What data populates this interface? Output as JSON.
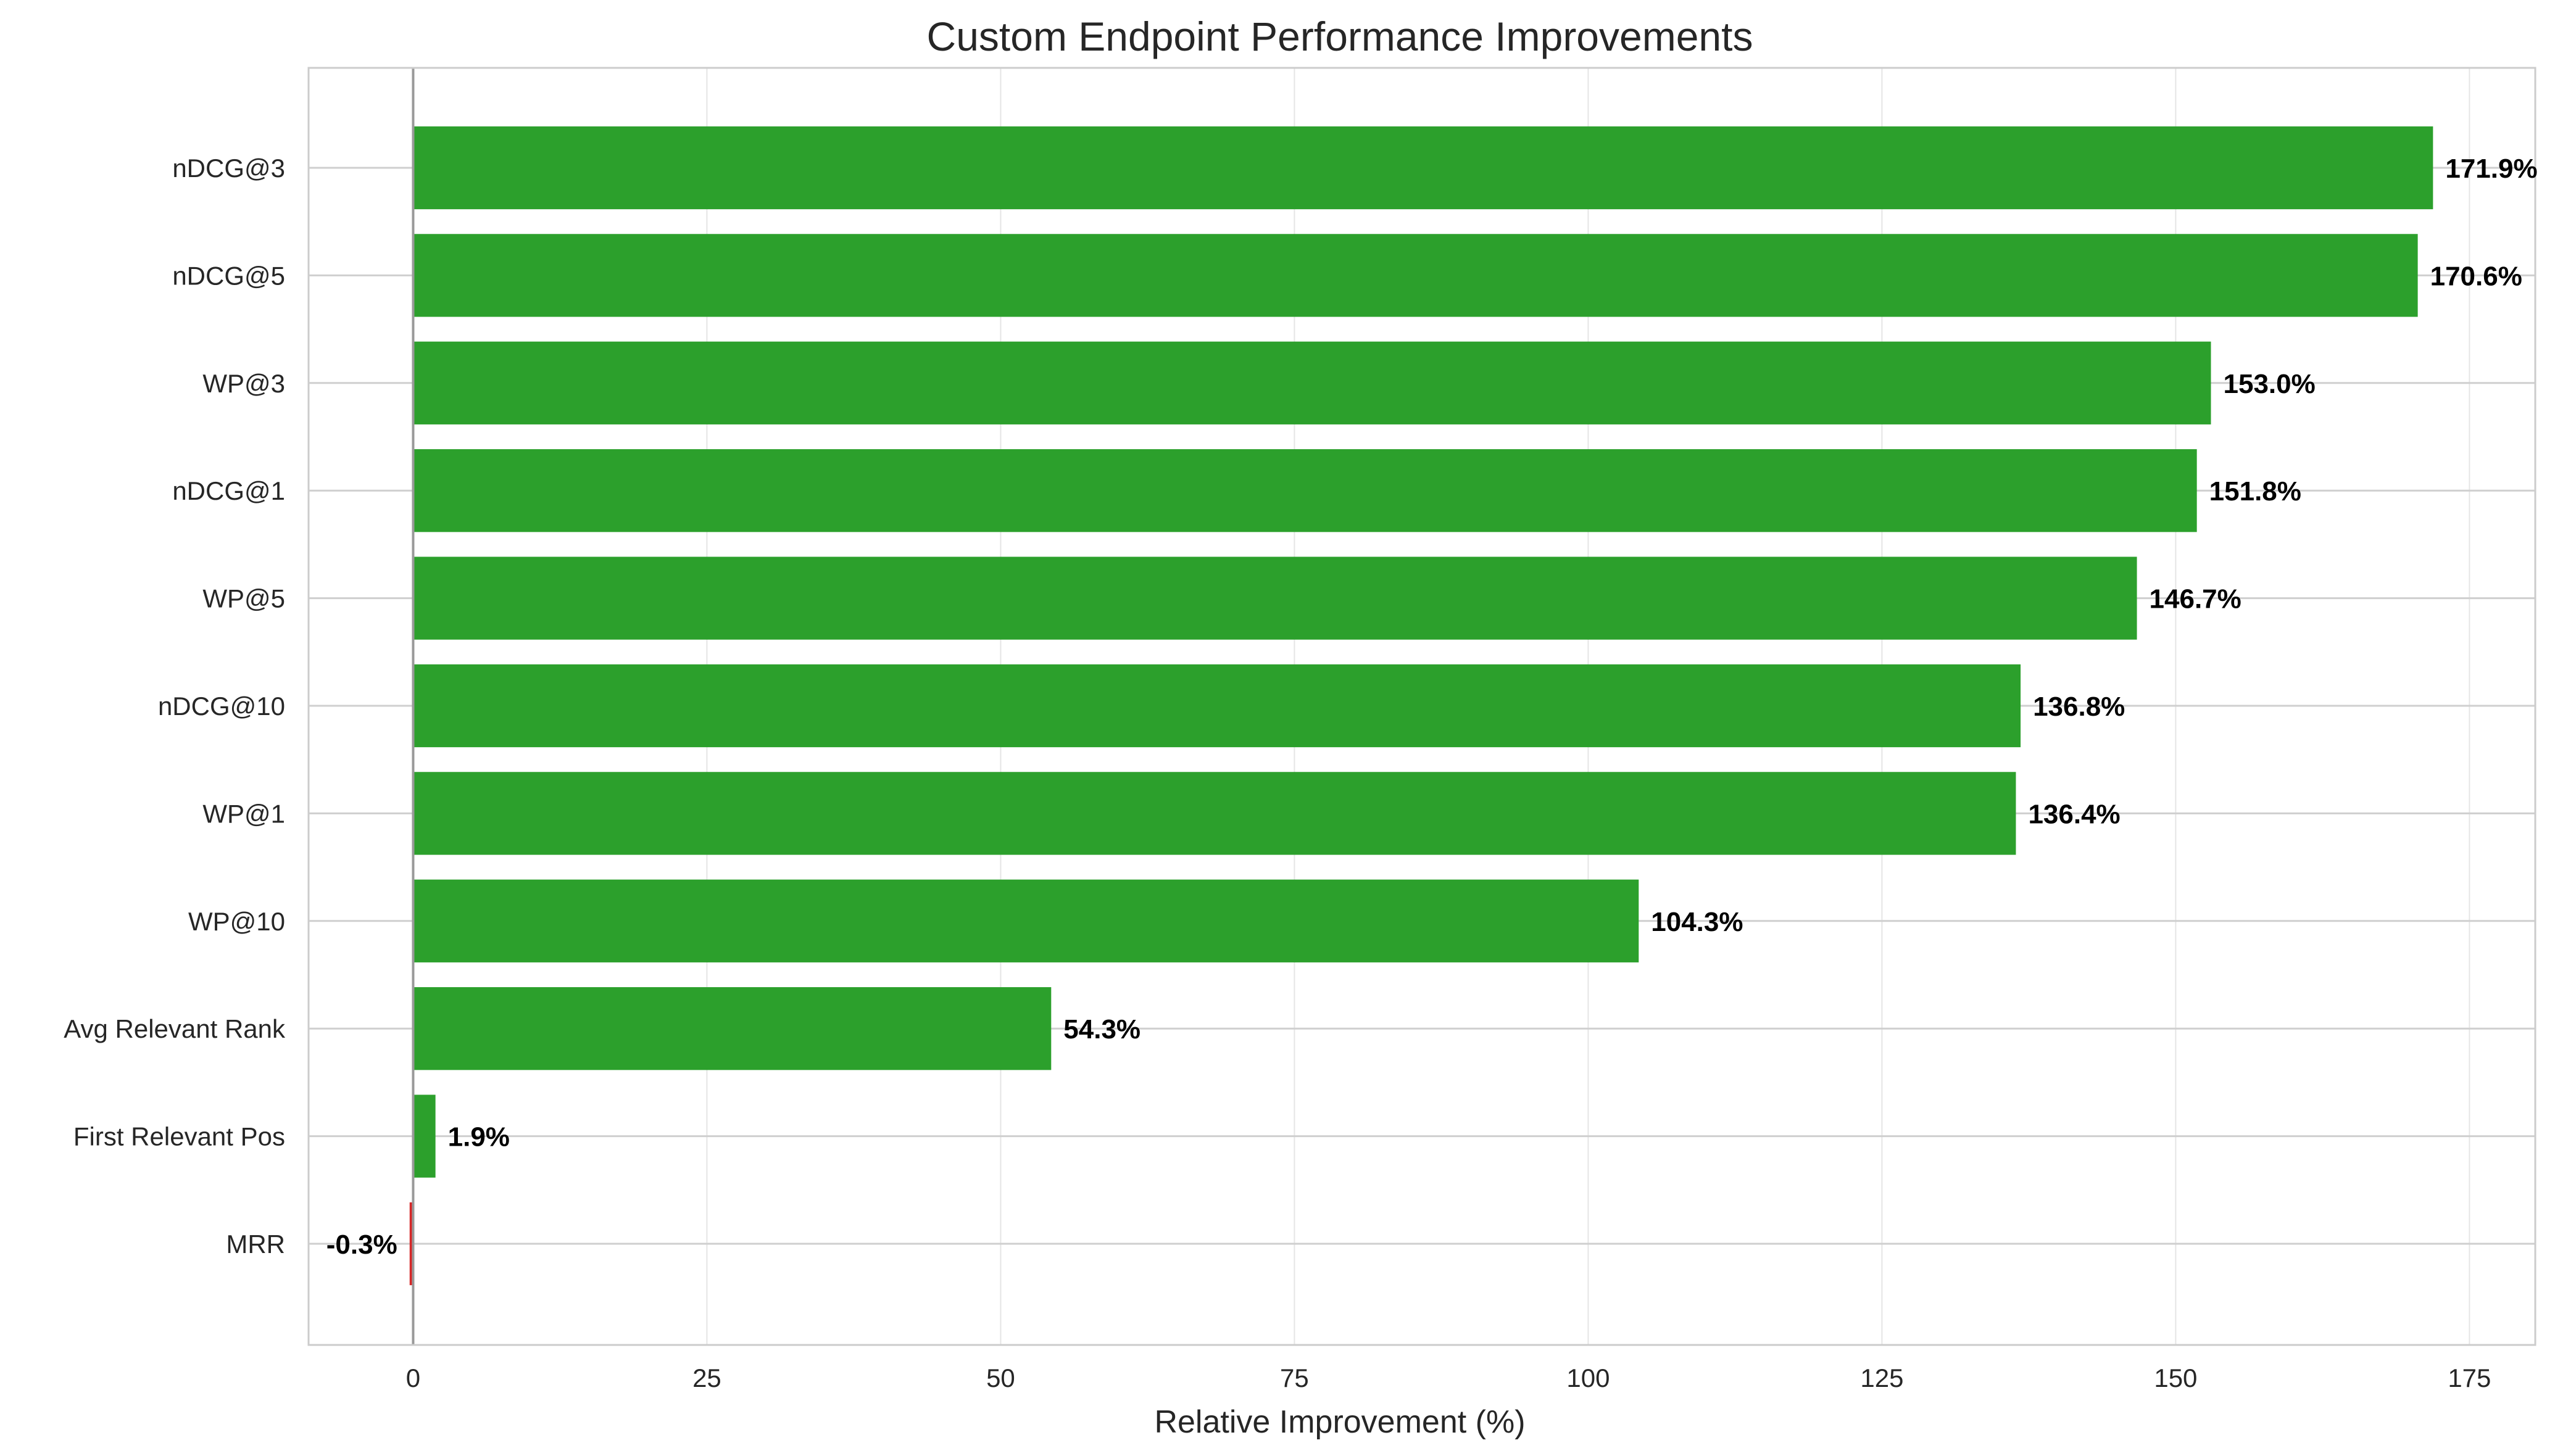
{
  "chart_data": {
    "type": "bar",
    "orientation": "horizontal",
    "title": "Custom Endpoint Performance Improvements",
    "xlabel": "Relative Improvement (%)",
    "ylabel": "",
    "xlim": [
      -8.9,
      180.6
    ],
    "xticks": [
      0,
      25,
      50,
      75,
      100,
      125,
      150,
      175
    ],
    "grid": true,
    "legend": "none",
    "colors": {
      "positive": "#2ca02c",
      "negative": "#d62728",
      "zero_line": "#999999",
      "grid": "#e5e5e5",
      "frame": "#cccccc",
      "label": "#000000"
    },
    "categories": [
      "nDCG@3",
      "nDCG@5",
      "WP@3",
      "nDCG@1",
      "WP@5",
      "nDCG@10",
      "WP@1",
      "WP@10",
      "Avg Relevant Rank",
      "First Relevant Pos",
      "MRR"
    ],
    "values": [
      171.9,
      170.6,
      153.0,
      151.8,
      146.7,
      136.8,
      136.4,
      104.3,
      54.3,
      1.9,
      -0.3
    ],
    "value_labels": [
      "171.9%",
      "170.6%",
      "153.0%",
      "151.8%",
      "146.7%",
      "136.8%",
      "136.4%",
      "104.3%",
      "54.3%",
      "1.9%",
      "-0.3%"
    ]
  }
}
